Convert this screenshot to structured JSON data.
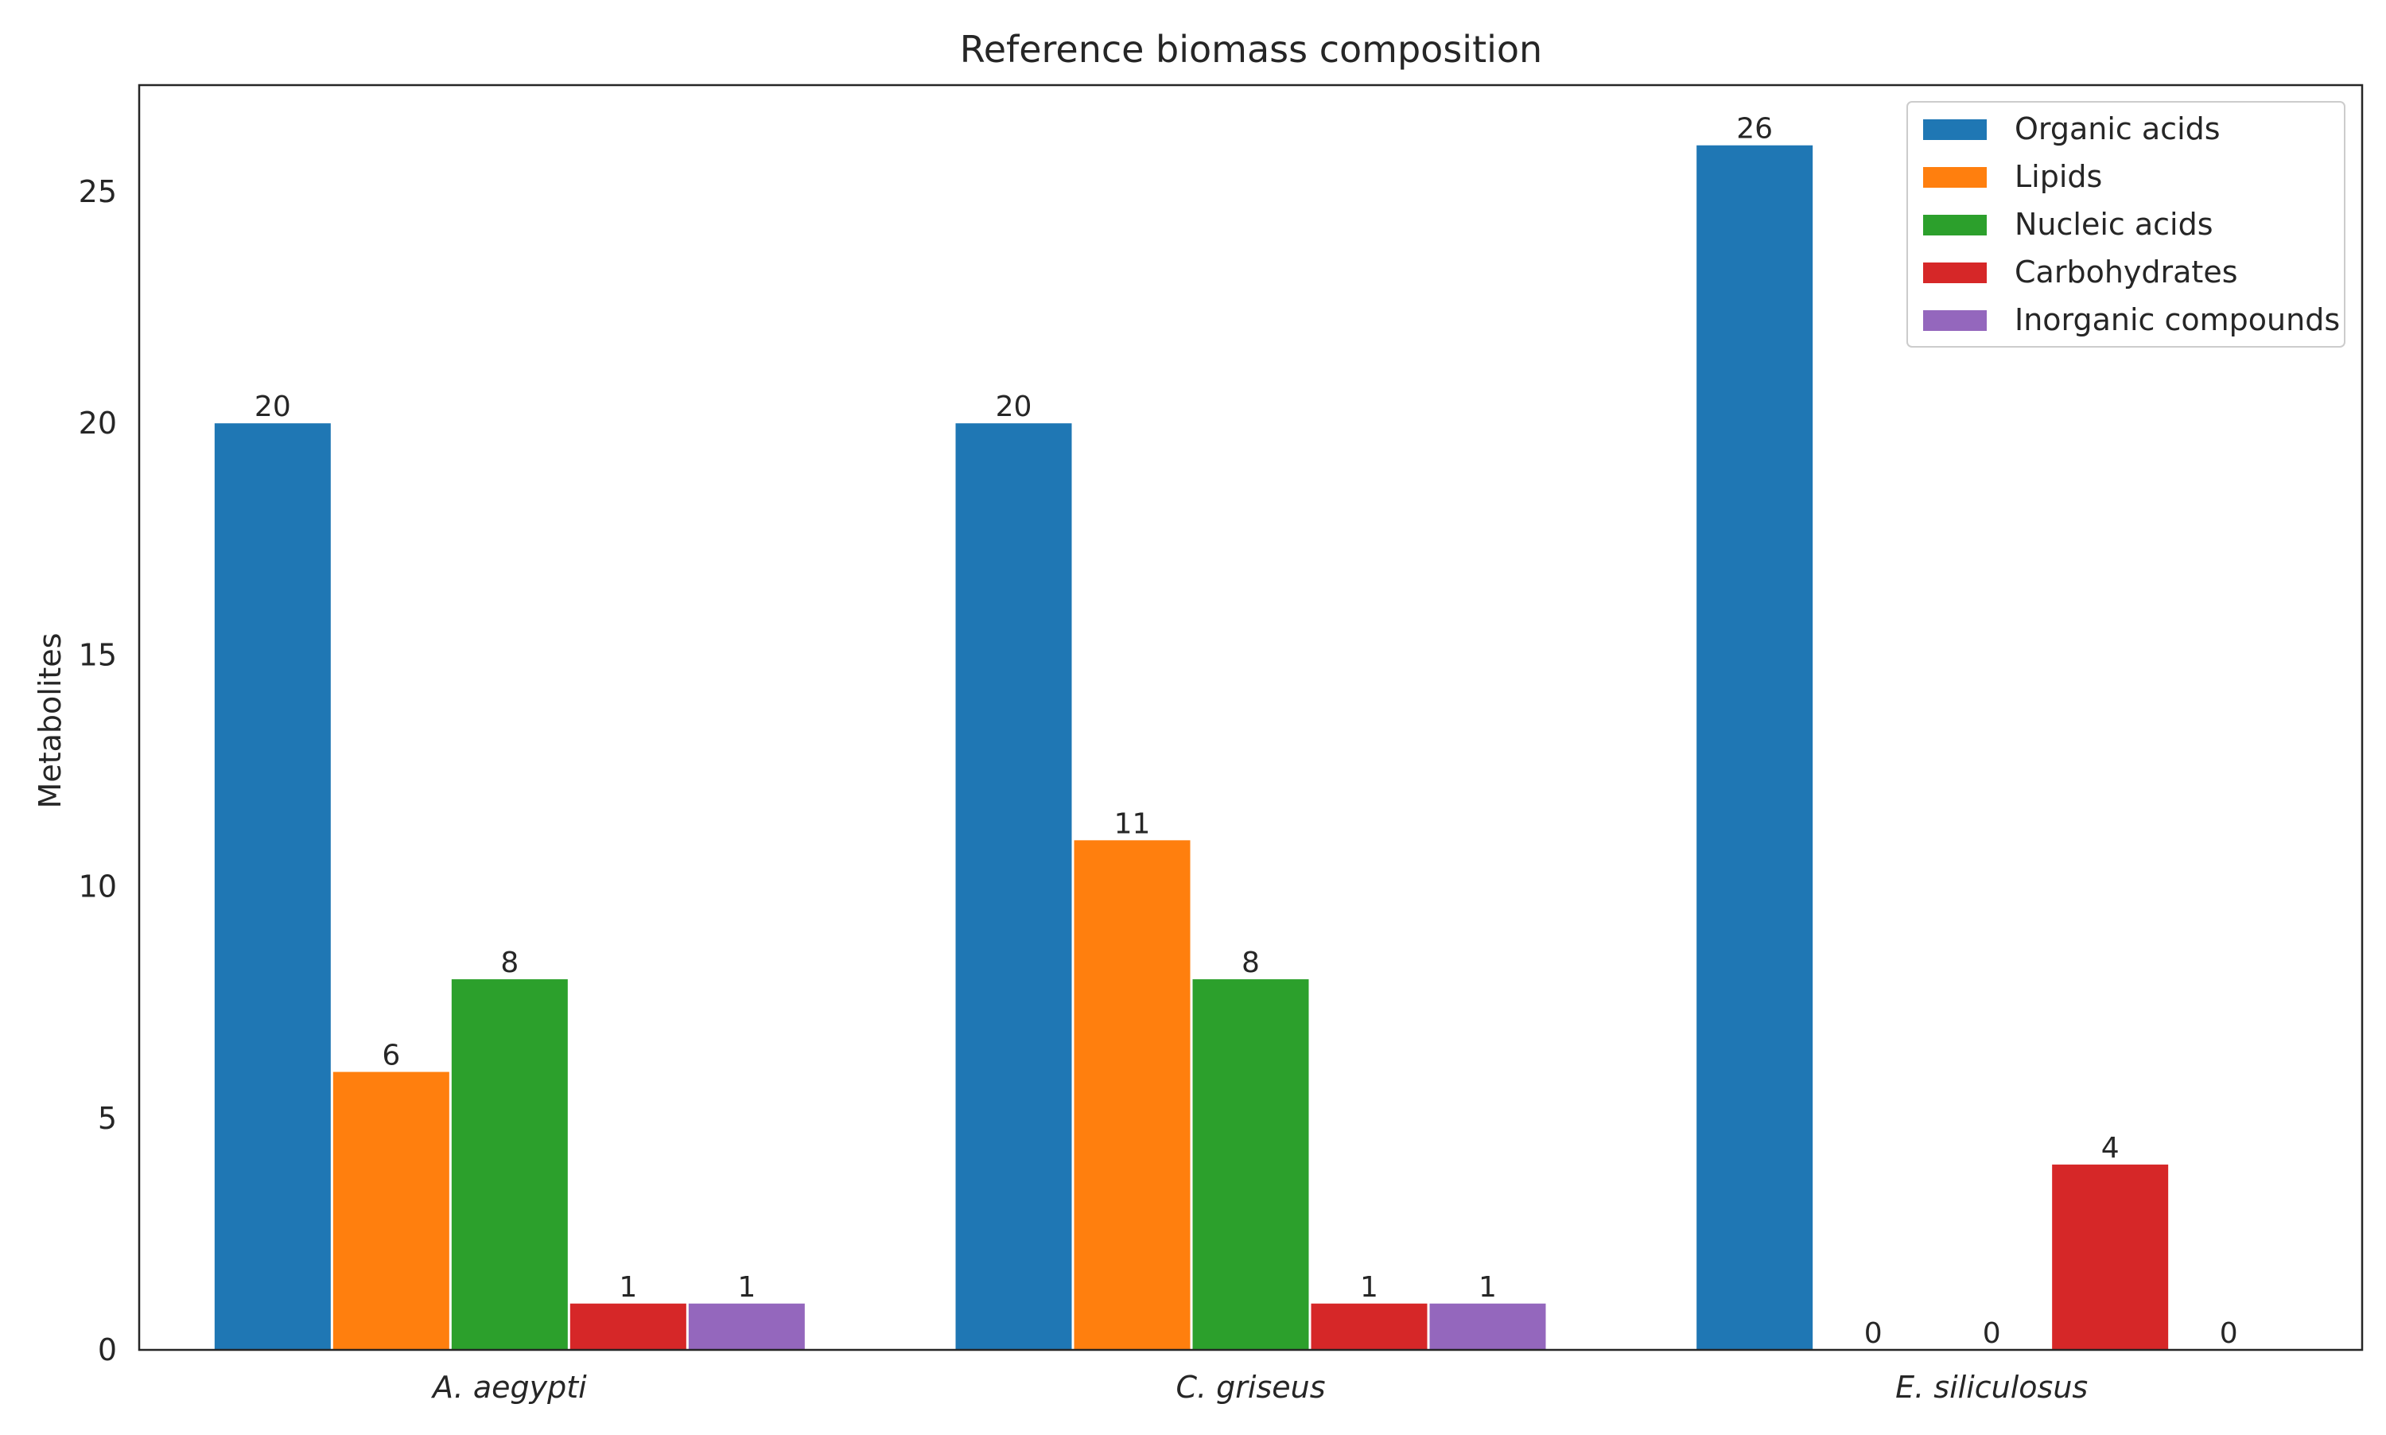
{
  "chart_data": {
    "type": "bar",
    "title": "Reference biomass composition",
    "xlabel": "",
    "ylabel": "Metabolites",
    "categories": [
      "A. aegypti",
      "C. griseus",
      "E. siliculosus"
    ],
    "ylim": [
      0,
      27.3
    ],
    "yticks": [
      0,
      5,
      10,
      15,
      20,
      25
    ],
    "grid": false,
    "legend_position": "top-right",
    "series": [
      {
        "name": "Organic acids",
        "color": "#1f77b4",
        "values": [
          20,
          20,
          26
        ]
      },
      {
        "name": "Lipids",
        "color": "#ff7f0e",
        "values": [
          6,
          11,
          0
        ]
      },
      {
        "name": "Nucleic acids",
        "color": "#2ca02c",
        "values": [
          8,
          8,
          0
        ]
      },
      {
        "name": "Carbohydrates",
        "color": "#d62728",
        "values": [
          1,
          1,
          4
        ]
      },
      {
        "name": "Inorganic compounds",
        "color": "#9467bd",
        "values": [
          1,
          1,
          0
        ]
      }
    ]
  }
}
